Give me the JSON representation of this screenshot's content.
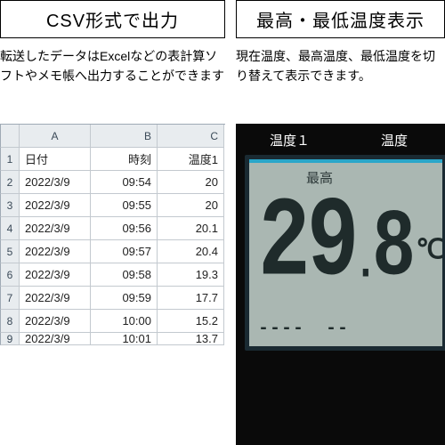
{
  "left": {
    "title": "CSV形式で出力",
    "desc": "転送したデータはExcelなどの表計算ソフトやメモ帳へ出力することができます",
    "spreadsheet": {
      "col_letters": [
        "A",
        "B",
        "C"
      ],
      "headers": [
        "日付",
        "時刻",
        "温度1"
      ],
      "rows": [
        [
          "2022/3/9",
          "09:54",
          "20"
        ],
        [
          "2022/3/9",
          "09:55",
          "20"
        ],
        [
          "2022/3/9",
          "09:56",
          "20.1"
        ],
        [
          "2022/3/9",
          "09:57",
          "20.4"
        ],
        [
          "2022/3/9",
          "09:58",
          "19.3"
        ],
        [
          "2022/3/9",
          "09:59",
          "17.7"
        ],
        [
          "2022/3/9",
          "10:00",
          "15.2"
        ],
        [
          "2022/3/9",
          "10:01",
          "13.7"
        ]
      ]
    }
  },
  "right": {
    "title": "最高・最低温度表示",
    "desc": "現在温度、最高温度、最低温度を切り替えて表示できます。",
    "device": {
      "ch1_label": "温度１",
      "ch2_label": "温度",
      "mode_label": "最高",
      "temp_int": "29",
      "temp_dec": "8",
      "unit": "℃",
      "bottom1": "----",
      "bottom2": "--"
    }
  }
}
